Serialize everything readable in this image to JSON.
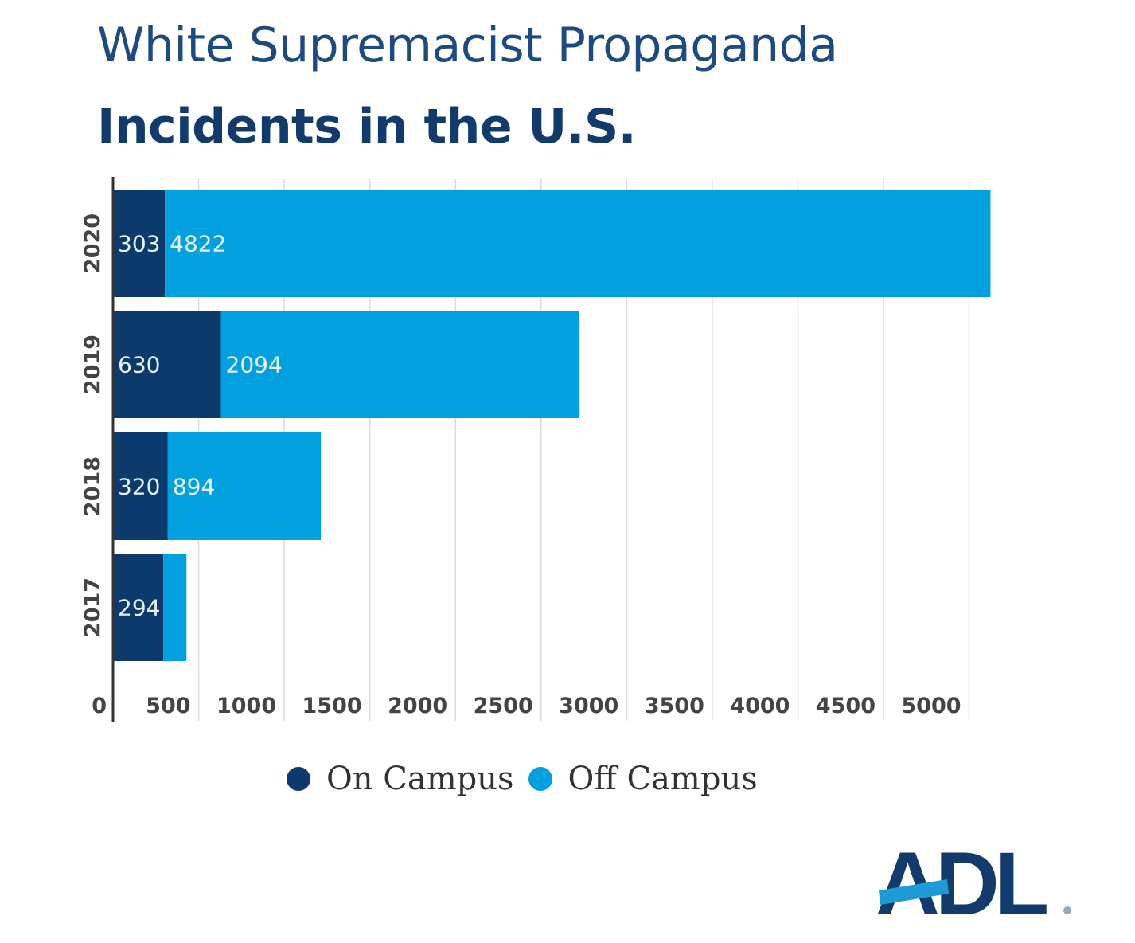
{
  "title_line1": "White Supremacist Propaganda",
  "title_line2": "Incidents in the U.S.",
  "logo_text": "ADL",
  "colors": {
    "on_campus": "#0c3a6d",
    "off_campus": "#02a0df",
    "title": "#1d4b80"
  },
  "chart_data": {
    "type": "bar",
    "orientation": "horizontal",
    "stacked": true,
    "title": "White Supremacist Propaganda Incidents in the U.S.",
    "categories": [
      "2020",
      "2019",
      "2018",
      "2017"
    ],
    "series": [
      {
        "name": "On Campus",
        "values": [
          303,
          630,
          320,
          294
        ],
        "labels": [
          "303",
          "630",
          "320",
          "294"
        ]
      },
      {
        "name": "Off Campus",
        "values": [
          4822,
          2094,
          894,
          135
        ],
        "labels": [
          "4822",
          "2094",
          "894",
          ""
        ]
      }
    ],
    "xlim": [
      0,
      5000
    ],
    "xticks": [
      0,
      500,
      1000,
      1500,
      2000,
      2500,
      3000,
      3500,
      4000,
      4500,
      5000
    ],
    "xtick_labels": [
      "0",
      "500",
      "1000",
      "1500",
      "2000",
      "2500",
      "3000",
      "3500",
      "4000",
      "4500",
      "5000"
    ],
    "grid": true,
    "legend_position": "bottom-center"
  }
}
